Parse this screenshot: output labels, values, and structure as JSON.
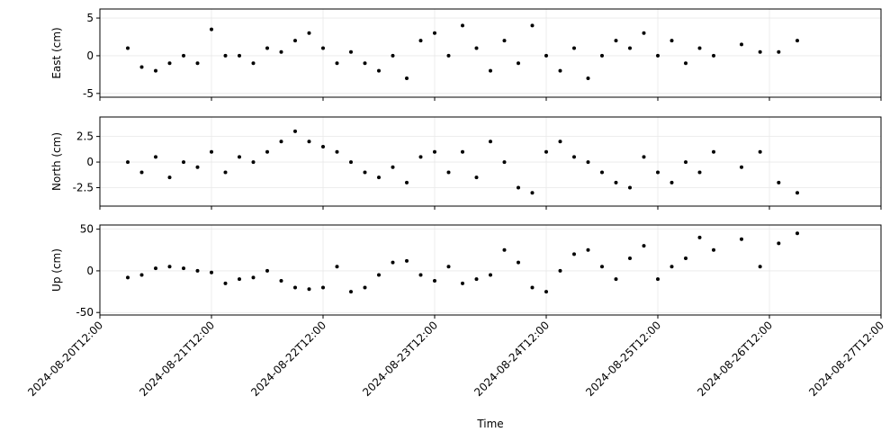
{
  "chart_data": [
    {
      "type": "scatter",
      "ylabel": "East (cm)",
      "color": "#000000",
      "grid": true,
      "xlim": [
        "2024-08-20T12:00",
        "2024-08-27T12:00"
      ],
      "xticks": [
        "2024-08-20T12:00",
        "2024-08-21T12:00",
        "2024-08-22T12:00",
        "2024-08-23T12:00",
        "2024-08-24T12:00",
        "2024-08-25T12:00",
        "2024-08-26T12:00",
        "2024-08-27T12:00"
      ],
      "ylim": [
        -5.5,
        6.2
      ],
      "yticks": [
        -5,
        0,
        5
      ],
      "x": [
        "2024-08-20T18:00",
        "2024-08-20T21:00",
        "2024-08-21T00:00",
        "2024-08-21T03:00",
        "2024-08-21T06:00",
        "2024-08-21T09:00",
        "2024-08-21T12:00",
        "2024-08-21T15:00",
        "2024-08-21T18:00",
        "2024-08-21T21:00",
        "2024-08-22T00:00",
        "2024-08-22T03:00",
        "2024-08-22T06:00",
        "2024-08-22T09:00",
        "2024-08-22T12:00",
        "2024-08-22T15:00",
        "2024-08-22T18:00",
        "2024-08-22T21:00",
        "2024-08-23T00:00",
        "2024-08-23T03:00",
        "2024-08-23T06:00",
        "2024-08-23T09:00",
        "2024-08-23T12:00",
        "2024-08-23T15:00",
        "2024-08-23T18:00",
        "2024-08-23T21:00",
        "2024-08-24T00:00",
        "2024-08-24T03:00",
        "2024-08-24T06:00",
        "2024-08-24T09:00",
        "2024-08-24T12:00",
        "2024-08-24T15:00",
        "2024-08-24T18:00",
        "2024-08-24T21:00",
        "2024-08-25T00:00",
        "2024-08-25T03:00",
        "2024-08-25T06:00",
        "2024-08-25T09:00",
        "2024-08-25T12:00",
        "2024-08-25T15:00",
        "2024-08-25T18:00",
        "2024-08-25T21:00",
        "2024-08-26T00:00",
        "2024-08-26T06:00",
        "2024-08-26T10:00",
        "2024-08-26T14:00",
        "2024-08-26T18:00"
      ],
      "values": [
        1,
        -1.5,
        -2,
        -1,
        0,
        -1,
        3.5,
        0,
        0,
        -1,
        1,
        0.5,
        2,
        3,
        1,
        -1,
        0.5,
        -1,
        -2,
        0,
        -3,
        2,
        3,
        0,
        4,
        1,
        -2,
        2,
        -1,
        4,
        0,
        -2,
        1,
        -3,
        0,
        2,
        1,
        3,
        0,
        2,
        -1,
        1,
        0,
        1.5,
        0.5,
        0.5,
        2
      ]
    },
    {
      "type": "scatter",
      "ylabel": "North (cm)",
      "color": "#000000",
      "grid": true,
      "xlim": [
        "2024-08-20T12:00",
        "2024-08-27T12:00"
      ],
      "xticks": [
        "2024-08-20T12:00",
        "2024-08-21T12:00",
        "2024-08-22T12:00",
        "2024-08-23T12:00",
        "2024-08-24T12:00",
        "2024-08-25T12:00",
        "2024-08-26T12:00",
        "2024-08-27T12:00"
      ],
      "ylim": [
        -4.3,
        4.4
      ],
      "yticks": [
        -2.5,
        0.0,
        2.5
      ],
      "x": [
        "2024-08-20T18:00",
        "2024-08-20T21:00",
        "2024-08-21T00:00",
        "2024-08-21T03:00",
        "2024-08-21T06:00",
        "2024-08-21T09:00",
        "2024-08-21T12:00",
        "2024-08-21T15:00",
        "2024-08-21T18:00",
        "2024-08-21T21:00",
        "2024-08-22T00:00",
        "2024-08-22T03:00",
        "2024-08-22T06:00",
        "2024-08-22T09:00",
        "2024-08-22T12:00",
        "2024-08-22T15:00",
        "2024-08-22T18:00",
        "2024-08-22T21:00",
        "2024-08-23T00:00",
        "2024-08-23T03:00",
        "2024-08-23T06:00",
        "2024-08-23T09:00",
        "2024-08-23T12:00",
        "2024-08-23T15:00",
        "2024-08-23T18:00",
        "2024-08-23T21:00",
        "2024-08-24T00:00",
        "2024-08-24T03:00",
        "2024-08-24T06:00",
        "2024-08-24T09:00",
        "2024-08-24T12:00",
        "2024-08-24T15:00",
        "2024-08-24T18:00",
        "2024-08-24T21:00",
        "2024-08-25T00:00",
        "2024-08-25T03:00",
        "2024-08-25T06:00",
        "2024-08-25T09:00",
        "2024-08-25T12:00",
        "2024-08-25T15:00",
        "2024-08-25T18:00",
        "2024-08-25T21:00",
        "2024-08-26T00:00",
        "2024-08-26T06:00",
        "2024-08-26T10:00",
        "2024-08-26T14:00",
        "2024-08-26T18:00"
      ],
      "values": [
        0,
        -1,
        0.5,
        -1.5,
        0,
        -0.5,
        1,
        -1,
        0.5,
        0,
        1,
        2,
        3,
        2,
        1.5,
        1,
        0,
        -1,
        -1.5,
        -0.5,
        -2,
        0.5,
        1,
        -1,
        1,
        -1.5,
        2,
        0,
        -2.5,
        -3,
        1,
        2,
        0.5,
        0,
        -1,
        -2,
        -2.5,
        0.5,
        -1,
        -2,
        0,
        -1,
        1,
        -0.5,
        1,
        -2,
        -3
      ]
    },
    {
      "type": "scatter",
      "ylabel": "Up (cm)",
      "xlabel": "Time",
      "color": "#000000",
      "grid": true,
      "xlim": [
        "2024-08-20T12:00",
        "2024-08-27T12:00"
      ],
      "xticks": [
        "2024-08-20T12:00",
        "2024-08-21T12:00",
        "2024-08-22T12:00",
        "2024-08-23T12:00",
        "2024-08-24T12:00",
        "2024-08-25T12:00",
        "2024-08-26T12:00",
        "2024-08-27T12:00"
      ],
      "ylim": [
        -53,
        55
      ],
      "yticks": [
        -50,
        0,
        50
      ],
      "x": [
        "2024-08-20T18:00",
        "2024-08-20T21:00",
        "2024-08-21T00:00",
        "2024-08-21T03:00",
        "2024-08-21T06:00",
        "2024-08-21T09:00",
        "2024-08-21T12:00",
        "2024-08-21T15:00",
        "2024-08-21T18:00",
        "2024-08-21T21:00",
        "2024-08-22T00:00",
        "2024-08-22T03:00",
        "2024-08-22T06:00",
        "2024-08-22T09:00",
        "2024-08-22T12:00",
        "2024-08-22T15:00",
        "2024-08-22T18:00",
        "2024-08-22T21:00",
        "2024-08-23T00:00",
        "2024-08-23T03:00",
        "2024-08-23T06:00",
        "2024-08-23T09:00",
        "2024-08-23T12:00",
        "2024-08-23T15:00",
        "2024-08-23T18:00",
        "2024-08-23T21:00",
        "2024-08-24T00:00",
        "2024-08-24T03:00",
        "2024-08-24T06:00",
        "2024-08-24T09:00",
        "2024-08-24T12:00",
        "2024-08-24T15:00",
        "2024-08-24T18:00",
        "2024-08-24T21:00",
        "2024-08-25T00:00",
        "2024-08-25T03:00",
        "2024-08-25T06:00",
        "2024-08-25T09:00",
        "2024-08-25T12:00",
        "2024-08-25T15:00",
        "2024-08-25T18:00",
        "2024-08-25T21:00",
        "2024-08-26T00:00",
        "2024-08-26T06:00",
        "2024-08-26T10:00",
        "2024-08-26T14:00",
        "2024-08-26T18:00"
      ],
      "values": [
        -8,
        -5,
        3,
        5,
        3,
        0,
        -2,
        -15,
        -10,
        -8,
        0,
        -12,
        -20,
        -22,
        -20,
        5,
        -25,
        -20,
        -5,
        10,
        12,
        -5,
        -12,
        5,
        -15,
        -10,
        -5,
        25,
        10,
        -20,
        -25,
        0,
        20,
        25,
        5,
        -10,
        15,
        30,
        -10,
        5,
        15,
        40,
        25,
        38,
        5,
        33,
        45
      ]
    }
  ]
}
